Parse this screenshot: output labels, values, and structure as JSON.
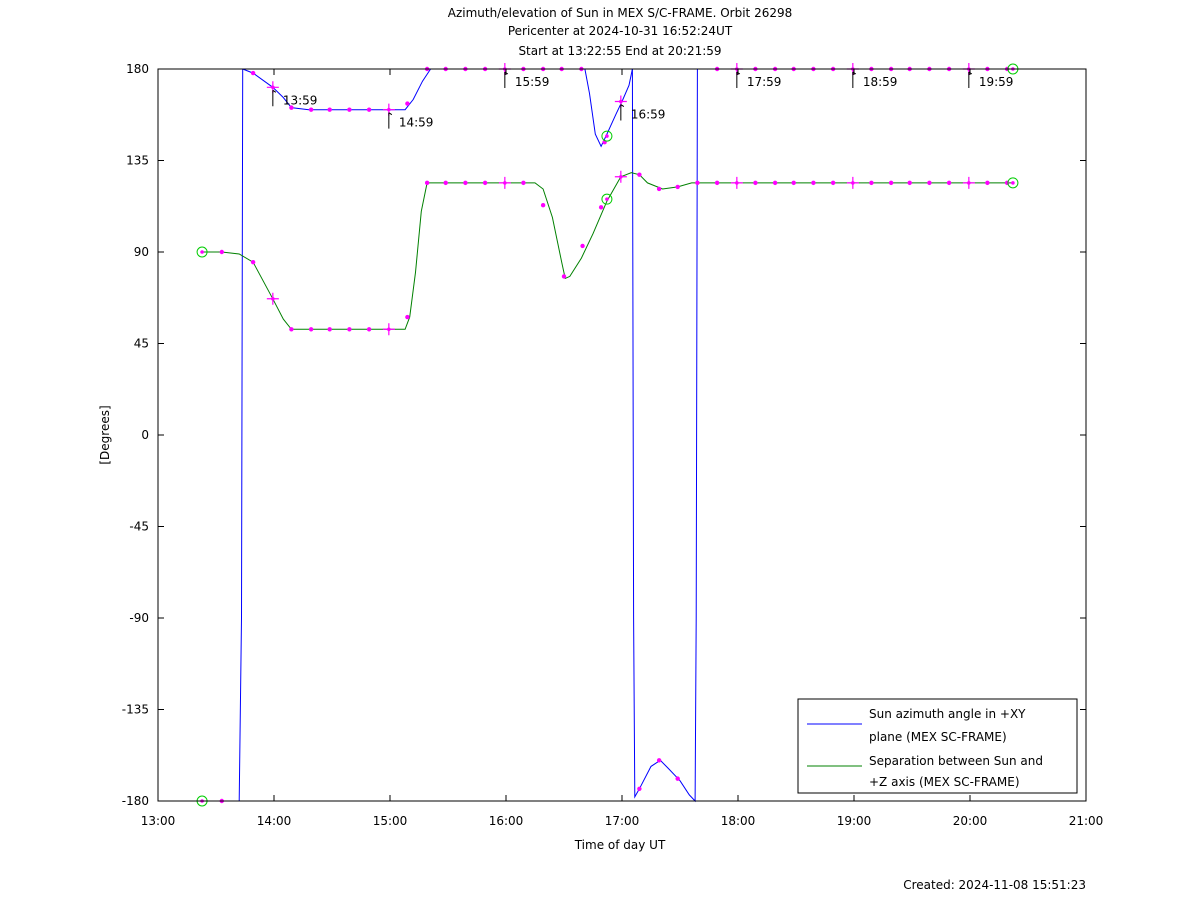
{
  "header": {
    "title": "Azimuth/elevation of Sun in MEX S/C-FRAME.  Orbit 26298",
    "pericenter": "Pericenter at 2024-10-31 16:52:24UT",
    "span": "Start at 13:22:55 End at 20:21:59"
  },
  "footer": {
    "created": "Created: 2024-11-08 15:51:23"
  },
  "colors": {
    "azimuth": "#0000ff",
    "separation": "#008000",
    "markers": "#ff00ff",
    "endpoints": "#00cc00",
    "axes": "#000000"
  },
  "chart_data": {
    "type": "line",
    "xlabel": "Time of day UT",
    "ylabel": "[Degrees]",
    "xlim": [
      13.0,
      21.0
    ],
    "ylim": [
      -180,
      180
    ],
    "xticks": [
      {
        "v": 13.0,
        "label": "13:00"
      },
      {
        "v": 14.0,
        "label": "14:00"
      },
      {
        "v": 15.0,
        "label": "15:00"
      },
      {
        "v": 16.0,
        "label": "16:00"
      },
      {
        "v": 17.0,
        "label": "17:00"
      },
      {
        "v": 18.0,
        "label": "18:00"
      },
      {
        "v": 19.0,
        "label": "19:00"
      },
      {
        "v": 20.0,
        "label": "20:00"
      },
      {
        "v": 21.0,
        "label": "21:00"
      }
    ],
    "yticks": [
      {
        "v": 180,
        "label": "180"
      },
      {
        "v": 135,
        "label": "135"
      },
      {
        "v": 90,
        "label": "90"
      },
      {
        "v": 45,
        "label": "45"
      },
      {
        "v": 0,
        "label": "0"
      },
      {
        "v": -45,
        "label": "-45"
      },
      {
        "v": -90,
        "label": "-90"
      },
      {
        "v": -135,
        "label": "-135"
      },
      {
        "v": -180,
        "label": "-180"
      }
    ],
    "legend_position": "bottom-right",
    "grid": false,
    "series": [
      {
        "name": "Sun azimuth angle in +XY plane (MEX SC-FRAME)",
        "legend_lines": [
          "Sun azimuth angle in +XY",
          "plane (MEX SC-FRAME)"
        ],
        "color": "#0000ff",
        "segments": [
          [
            [
              13.38,
              -180
            ],
            [
              13.55,
              -180
            ],
            [
              13.7,
              -180
            ],
            [
              13.72,
              -90
            ],
            [
              13.73,
              180
            ]
          ],
          [
            [
              13.73,
              180
            ],
            [
              13.82,
              178
            ],
            [
              13.99,
              171
            ],
            [
              14.08,
              166
            ],
            [
              14.15,
              161
            ],
            [
              14.3,
              160
            ],
            [
              14.5,
              160
            ],
            [
              14.7,
              160
            ],
            [
              14.98,
              160
            ],
            [
              15.13,
              160
            ],
            [
              15.2,
              165
            ],
            [
              15.28,
              174
            ],
            [
              15.35,
              180
            ],
            [
              15.5,
              180
            ],
            [
              15.99,
              180
            ],
            [
              16.5,
              180
            ],
            [
              16.68,
              180
            ],
            [
              16.72,
              168
            ],
            [
              16.77,
              148
            ],
            [
              16.82,
              142
            ],
            [
              16.87,
              148
            ],
            [
              16.95,
              158
            ],
            [
              17.0,
              164
            ],
            [
              17.06,
              172
            ],
            [
              17.09,
              180
            ]
          ],
          [
            [
              17.09,
              180
            ],
            [
              17.1,
              -90
            ],
            [
              17.11,
              -178
            ],
            [
              17.15,
              -174
            ],
            [
              17.25,
              -163
            ],
            [
              17.33,
              -160
            ],
            [
              17.4,
              -164
            ],
            [
              17.5,
              -170
            ],
            [
              17.58,
              -177
            ],
            [
              17.63,
              -180
            ],
            [
              17.64,
              -90
            ],
            [
              17.65,
              180
            ]
          ],
          [
            [
              17.65,
              180
            ],
            [
              18.0,
              180
            ],
            [
              19.0,
              180
            ],
            [
              20.0,
              180
            ],
            [
              20.37,
              180
            ]
          ]
        ],
        "markers": [
          {
            "x": 13.38,
            "y": -180,
            "k": "c"
          },
          {
            "x": 13.55,
            "y": -180,
            "k": "d"
          },
          {
            "x": 13.82,
            "y": 178,
            "k": "d"
          },
          {
            "x": 13.99,
            "y": 171,
            "k": "p"
          },
          {
            "x": 14.15,
            "y": 161,
            "k": "d"
          },
          {
            "x": 14.32,
            "y": 160,
            "k": "d"
          },
          {
            "x": 14.48,
            "y": 160,
            "k": "d"
          },
          {
            "x": 14.65,
            "y": 160,
            "k": "d"
          },
          {
            "x": 14.82,
            "y": 160,
            "k": "d"
          },
          {
            "x": 14.99,
            "y": 160,
            "k": "p"
          },
          {
            "x": 15.15,
            "y": 163,
            "k": "d"
          },
          {
            "x": 15.32,
            "y": 180,
            "k": "d"
          },
          {
            "x": 15.48,
            "y": 180,
            "k": "d"
          },
          {
            "x": 15.65,
            "y": 180,
            "k": "d"
          },
          {
            "x": 15.82,
            "y": 180,
            "k": "d"
          },
          {
            "x": 15.99,
            "y": 180,
            "k": "p"
          },
          {
            "x": 16.15,
            "y": 180,
            "k": "d"
          },
          {
            "x": 16.32,
            "y": 180,
            "k": "d"
          },
          {
            "x": 16.48,
            "y": 180,
            "k": "d"
          },
          {
            "x": 16.65,
            "y": 180,
            "k": "d"
          },
          {
            "x": 16.85,
            "y": 144,
            "k": "d"
          },
          {
            "x": 16.87,
            "y": 147,
            "k": "c"
          },
          {
            "x": 16.99,
            "y": 164,
            "k": "p"
          },
          {
            "x": 17.15,
            "y": -174,
            "k": "d"
          },
          {
            "x": 17.32,
            "y": -160,
            "k": "d"
          },
          {
            "x": 17.48,
            "y": -169,
            "k": "d"
          },
          {
            "x": 17.82,
            "y": 180,
            "k": "d"
          },
          {
            "x": 17.99,
            "y": 180,
            "k": "p"
          },
          {
            "x": 18.15,
            "y": 180,
            "k": "d"
          },
          {
            "x": 18.32,
            "y": 180,
            "k": "d"
          },
          {
            "x": 18.48,
            "y": 180,
            "k": "d"
          },
          {
            "x": 18.65,
            "y": 180,
            "k": "d"
          },
          {
            "x": 18.82,
            "y": 180,
            "k": "d"
          },
          {
            "x": 18.99,
            "y": 180,
            "k": "p"
          },
          {
            "x": 19.15,
            "y": 180,
            "k": "d"
          },
          {
            "x": 19.32,
            "y": 180,
            "k": "d"
          },
          {
            "x": 19.48,
            "y": 180,
            "k": "d"
          },
          {
            "x": 19.65,
            "y": 180,
            "k": "d"
          },
          {
            "x": 19.82,
            "y": 180,
            "k": "d"
          },
          {
            "x": 19.99,
            "y": 180,
            "k": "p"
          },
          {
            "x": 20.15,
            "y": 180,
            "k": "d"
          },
          {
            "x": 20.32,
            "y": 180,
            "k": "d"
          },
          {
            "x": 20.37,
            "y": 180,
            "k": "c"
          }
        ]
      },
      {
        "name": "Separation between Sun and +Z axis (MEX SC-FRAME)",
        "legend_lines": [
          "Separation between Sun and",
          "+Z axis (MEX SC-FRAME)"
        ],
        "color": "#008000",
        "segments": [
          [
            [
              13.38,
              90
            ],
            [
              13.55,
              90
            ],
            [
              13.7,
              89
            ],
            [
              13.82,
              85
            ],
            [
              13.99,
              67
            ],
            [
              14.08,
              57
            ],
            [
              14.15,
              52
            ],
            [
              14.3,
              52
            ],
            [
              14.65,
              52
            ],
            [
              14.99,
              52
            ],
            [
              15.13,
              52
            ],
            [
              15.17,
              58
            ],
            [
              15.22,
              80
            ],
            [
              15.27,
              110
            ],
            [
              15.32,
              124
            ],
            [
              15.5,
              124
            ],
            [
              15.99,
              124
            ],
            [
              16.25,
              124
            ],
            [
              16.32,
              121
            ],
            [
              16.4,
              107
            ],
            [
              16.48,
              85
            ],
            [
              16.51,
              77
            ],
            [
              16.55,
              78
            ],
            [
              16.65,
              87
            ],
            [
              16.75,
              99
            ],
            [
              16.87,
              115
            ],
            [
              16.99,
              127
            ],
            [
              17.08,
              129
            ],
            [
              17.15,
              128
            ],
            [
              17.22,
              124
            ],
            [
              17.35,
              121
            ],
            [
              17.48,
              122
            ],
            [
              17.6,
              124
            ],
            [
              17.7,
              124
            ],
            [
              18.0,
              124
            ],
            [
              19.0,
              124
            ],
            [
              20.0,
              124
            ],
            [
              20.37,
              124
            ]
          ]
        ],
        "markers": [
          {
            "x": 13.38,
            "y": 90,
            "k": "c"
          },
          {
            "x": 13.55,
            "y": 90,
            "k": "d"
          },
          {
            "x": 13.82,
            "y": 85,
            "k": "d"
          },
          {
            "x": 13.99,
            "y": 67,
            "k": "p"
          },
          {
            "x": 14.15,
            "y": 52,
            "k": "d"
          },
          {
            "x": 14.32,
            "y": 52,
            "k": "d"
          },
          {
            "x": 14.48,
            "y": 52,
            "k": "d"
          },
          {
            "x": 14.65,
            "y": 52,
            "k": "d"
          },
          {
            "x": 14.82,
            "y": 52,
            "k": "d"
          },
          {
            "x": 14.99,
            "y": 52,
            "k": "p"
          },
          {
            "x": 15.15,
            "y": 58,
            "k": "d"
          },
          {
            "x": 15.32,
            "y": 124,
            "k": "d"
          },
          {
            "x": 15.48,
            "y": 124,
            "k": "d"
          },
          {
            "x": 15.65,
            "y": 124,
            "k": "d"
          },
          {
            "x": 15.82,
            "y": 124,
            "k": "d"
          },
          {
            "x": 15.99,
            "y": 124,
            "k": "p"
          },
          {
            "x": 16.15,
            "y": 124,
            "k": "d"
          },
          {
            "x": 16.32,
            "y": 113,
            "k": "d"
          },
          {
            "x": 16.5,
            "y": 78,
            "k": "d"
          },
          {
            "x": 16.66,
            "y": 93,
            "k": "d"
          },
          {
            "x": 16.82,
            "y": 112,
            "k": "d"
          },
          {
            "x": 16.87,
            "y": 116,
            "k": "c"
          },
          {
            "x": 16.99,
            "y": 127,
            "k": "p"
          },
          {
            "x": 17.15,
            "y": 128,
            "k": "d"
          },
          {
            "x": 17.32,
            "y": 121,
            "k": "d"
          },
          {
            "x": 17.48,
            "y": 122,
            "k": "d"
          },
          {
            "x": 17.65,
            "y": 124,
            "k": "d"
          },
          {
            "x": 17.82,
            "y": 124,
            "k": "d"
          },
          {
            "x": 17.99,
            "y": 124,
            "k": "p"
          },
          {
            "x": 18.15,
            "y": 124,
            "k": "d"
          },
          {
            "x": 18.32,
            "y": 124,
            "k": "d"
          },
          {
            "x": 18.48,
            "y": 124,
            "k": "d"
          },
          {
            "x": 18.65,
            "y": 124,
            "k": "d"
          },
          {
            "x": 18.82,
            "y": 124,
            "k": "d"
          },
          {
            "x": 18.99,
            "y": 124,
            "k": "p"
          },
          {
            "x": 19.15,
            "y": 124,
            "k": "d"
          },
          {
            "x": 19.32,
            "y": 124,
            "k": "d"
          },
          {
            "x": 19.48,
            "y": 124,
            "k": "d"
          },
          {
            "x": 19.65,
            "y": 124,
            "k": "d"
          },
          {
            "x": 19.82,
            "y": 124,
            "k": "d"
          },
          {
            "x": 19.99,
            "y": 124,
            "k": "p"
          },
          {
            "x": 20.15,
            "y": 124,
            "k": "d"
          },
          {
            "x": 20.32,
            "y": 124,
            "k": "d"
          },
          {
            "x": 20.37,
            "y": 124,
            "k": "c"
          }
        ]
      }
    ],
    "annotations": [
      {
        "label": "13:59",
        "x": 13.99,
        "y": 171
      },
      {
        "label": "14:59",
        "x": 14.99,
        "y": 160
      },
      {
        "label": "15:59",
        "x": 15.99,
        "y": 180
      },
      {
        "label": "16:59",
        "x": 16.99,
        "y": 164
      },
      {
        "label": "17:59",
        "x": 17.99,
        "y": 180
      },
      {
        "label": "18:59",
        "x": 18.99,
        "y": 180
      },
      {
        "label": "19:59",
        "x": 19.99,
        "y": 180
      }
    ]
  }
}
